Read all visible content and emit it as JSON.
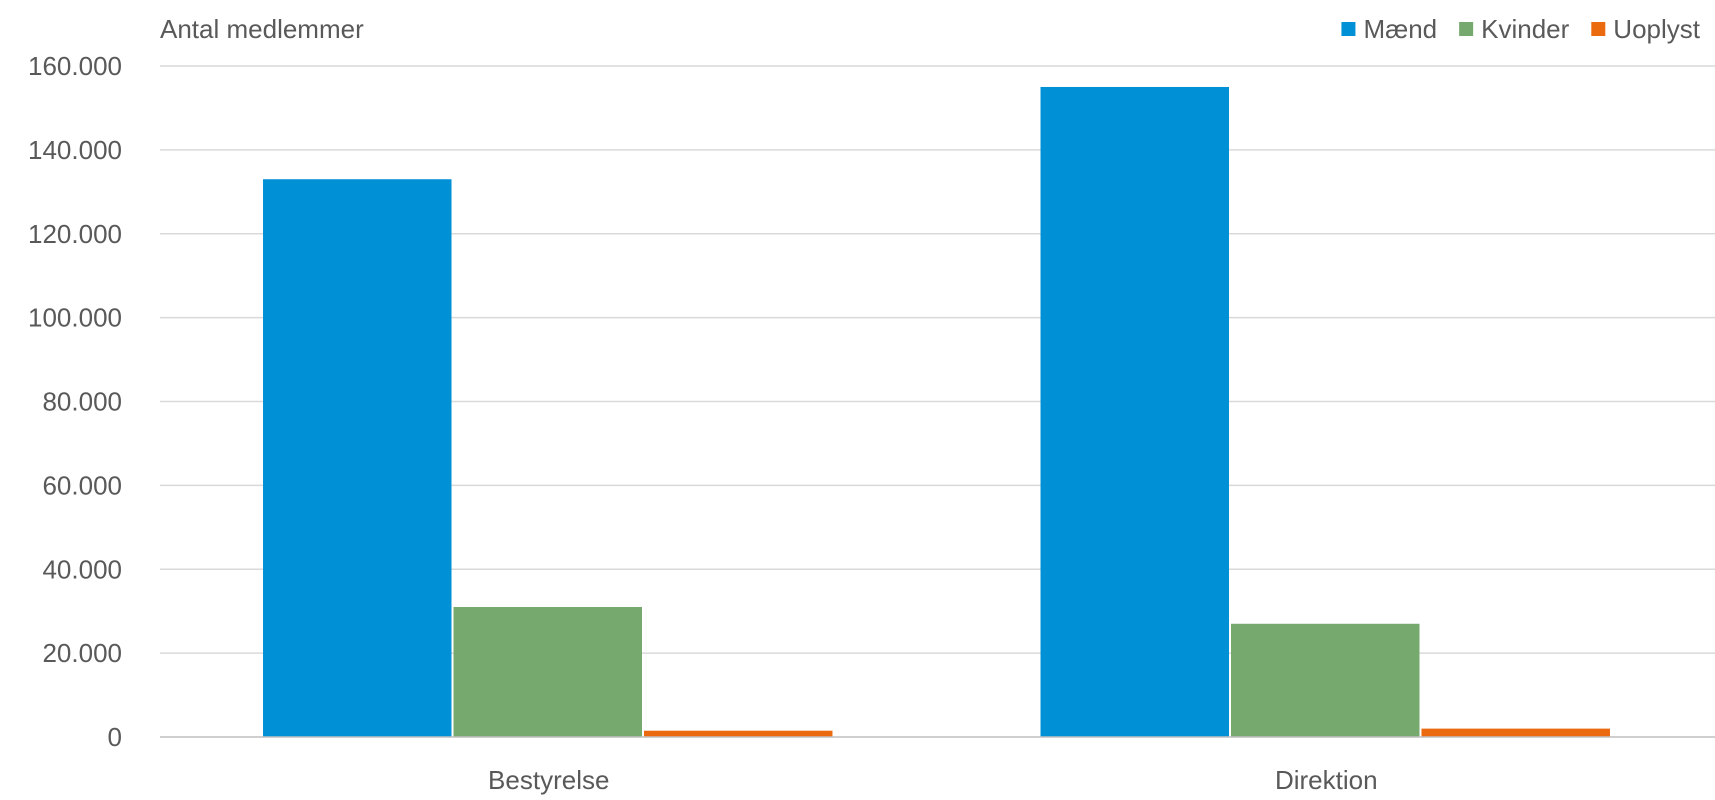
{
  "chart_data": {
    "type": "bar",
    "ylabel": "Antal medlemmer",
    "xlabel": "",
    "categories": [
      "Bestyrelse",
      "Direktion"
    ],
    "series": [
      {
        "name": "Mænd",
        "color": "#0090D6",
        "values": [
          133000,
          155000
        ]
      },
      {
        "name": "Kvinder",
        "color": "#76A96E",
        "values": [
          31000,
          27000
        ]
      },
      {
        "name": "Uoplyst",
        "color": "#EB6A10",
        "values": [
          1500,
          2000
        ]
      }
    ],
    "ylim": [
      0,
      160000
    ],
    "yticks": [
      "0",
      "20.000",
      "40.000",
      "60.000",
      "80.000",
      "100.000",
      "120.000",
      "140.000",
      "160.000"
    ],
    "ytick_values": [
      0,
      20000,
      40000,
      60000,
      80000,
      100000,
      120000,
      140000,
      160000
    ],
    "grid": true,
    "legend": "top-right"
  }
}
